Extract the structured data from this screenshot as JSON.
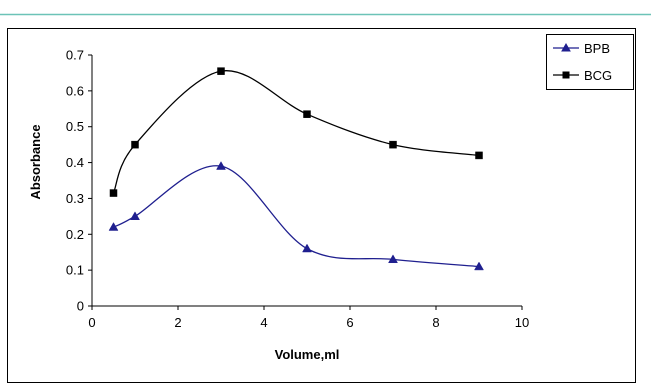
{
  "chart_data": {
    "type": "line",
    "title": "",
    "xlabel": "Volume,ml",
    "ylabel": "Absorbance",
    "xlim": [
      0,
      10
    ],
    "ylim": [
      0,
      0.7
    ],
    "x_ticks": [
      "0",
      "2",
      "4",
      "6",
      "8",
      "10"
    ],
    "y_ticks": [
      "0",
      "0.1",
      "0.2",
      "0.3",
      "0.4",
      "0.5",
      "0.6",
      "0.7"
    ],
    "grid": false,
    "legend_position": "top-right",
    "series": [
      {
        "name": "BPB",
        "marker": "triangle",
        "color": "#1f1f8f",
        "x": [
          0.5,
          1,
          3,
          5,
          7,
          9
        ],
        "y": [
          0.22,
          0.25,
          0.39,
          0.16,
          0.13,
          0.11
        ]
      },
      {
        "name": "BCG",
        "marker": "square",
        "color": "#000000",
        "x": [
          0.5,
          1,
          3,
          5,
          7,
          9
        ],
        "y": [
          0.315,
          0.45,
          0.655,
          0.535,
          0.45,
          0.42
        ]
      }
    ]
  },
  "colors": {
    "top_border": "#6cc3b7",
    "frame": "#000000",
    "BPB": "#1f1f8f",
    "BCG": "#000000"
  }
}
